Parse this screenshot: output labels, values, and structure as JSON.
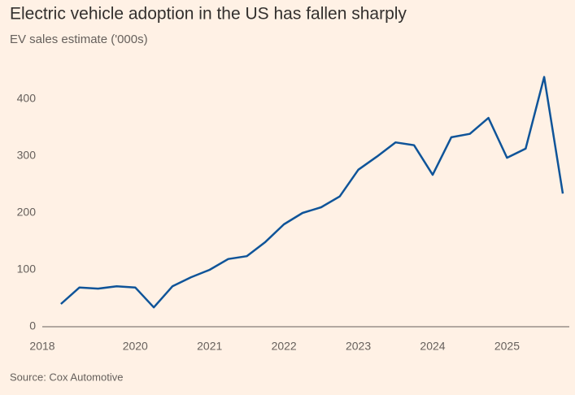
{
  "chart_data": {
    "type": "line",
    "title": "Electric vehicle adoption in the US has fallen sharply",
    "subtitle": "EV sales estimate ('000s)",
    "source": "Source: Cox Automotive",
    "categories": [
      "2018",
      null,
      null,
      null,
      null,
      "2020",
      null,
      null,
      null,
      "2021",
      null,
      null,
      null,
      "2022",
      null,
      null,
      null,
      "2023",
      null,
      null,
      null,
      "2024",
      null,
      null,
      null,
      "2025",
      null,
      null,
      null
    ],
    "series": [
      {
        "name": "EV sales",
        "color": "#0f5499",
        "values": [
          null,
          40,
          69,
          67,
          71,
          69,
          34,
          71,
          87,
          100,
          119,
          124,
          149,
          180,
          200,
          210,
          229,
          276,
          299,
          324,
          319,
          267,
          333,
          339,
          367,
          297,
          313,
          439,
          234
        ]
      }
    ],
    "ylim": [
      0,
      450
    ],
    "yticks": [
      0,
      100,
      200,
      300,
      400
    ],
    "grid": false
  }
}
